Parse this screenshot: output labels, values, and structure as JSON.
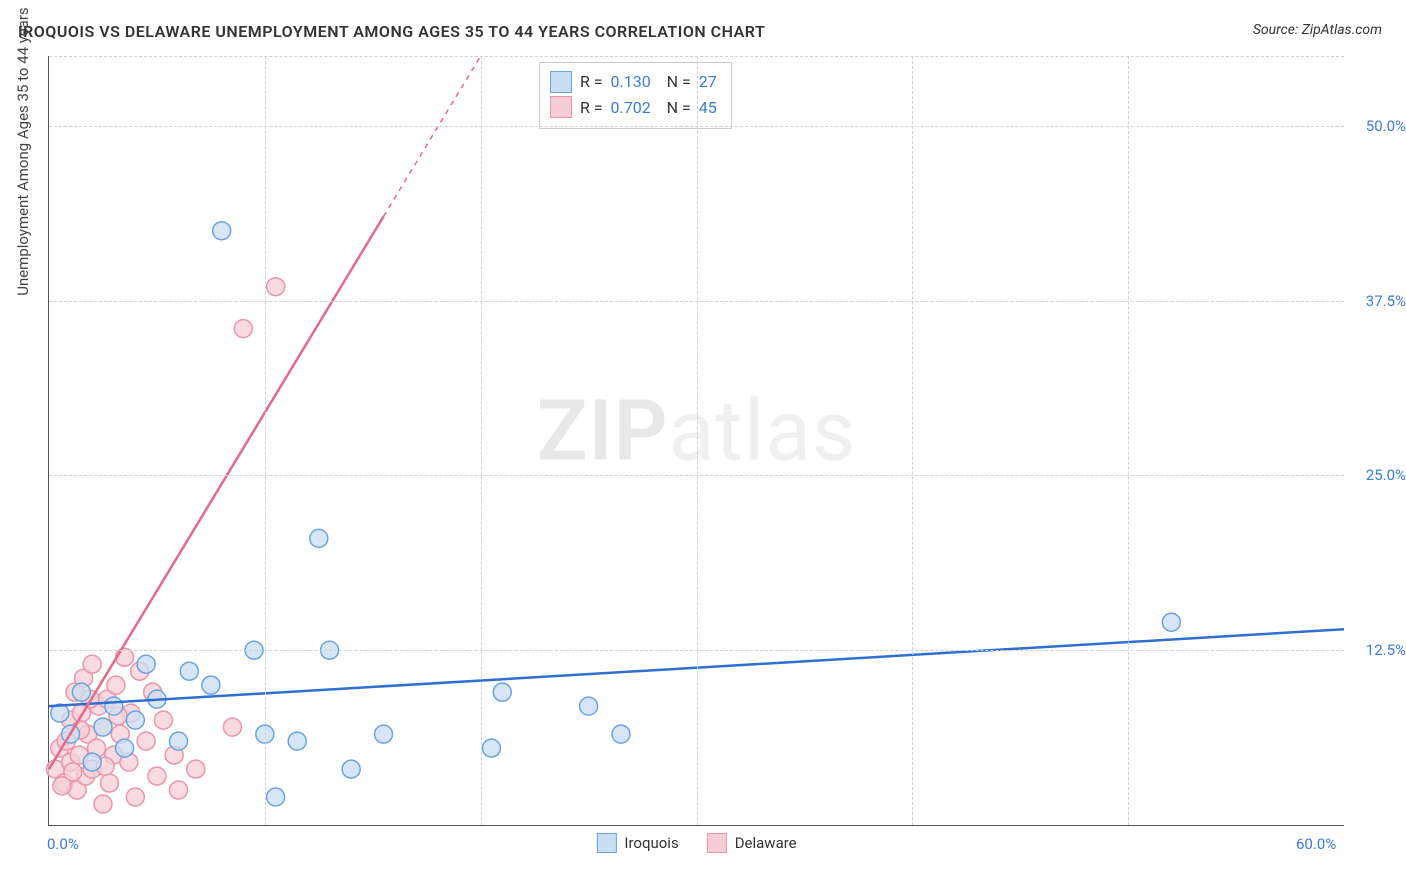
{
  "title": "IROQUOIS VS DELAWARE UNEMPLOYMENT AMONG AGES 35 TO 44 YEARS CORRELATION CHART",
  "source_label": "Source:",
  "source_value": "ZipAtlas.com",
  "ylabel": "Unemployment Among Ages 35 to 44 years",
  "watermark_zip": "ZIP",
  "watermark_atlas": "atlas",
  "chart": {
    "type": "scatter",
    "xlim": [
      0,
      60
    ],
    "ylim": [
      0,
      55
    ],
    "xticks": [
      0,
      60
    ],
    "xtick_labels": [
      "0.0%",
      "60.0%"
    ],
    "yticks": [
      12.5,
      25.0,
      37.5,
      50.0
    ],
    "ytick_labels": [
      "12.5%",
      "25.0%",
      "37.5%",
      "50.0%"
    ],
    "vgrid_at": [
      10,
      20,
      30,
      40,
      50
    ],
    "background_color": "#ffffff",
    "grid_color": "#d0d0d0",
    "axis_color": "#555555",
    "tick_label_color": "#3b7dd8",
    "marker_radius": 9,
    "marker_stroke_width": 1.5,
    "trend_line_width": 2.5,
    "series": [
      {
        "name": "Iroquois",
        "fill": "#c9ddf3",
        "stroke": "#6aa3e0",
        "fill_opacity": 0.75,
        "r_value": "0.130",
        "n_value": "27",
        "trend": {
          "x1": 0,
          "y1": 8.5,
          "x2": 60,
          "y2": 14.0,
          "color": "#2f6fd0",
          "dashed_after_x": null
        },
        "points": [
          [
            0.5,
            8.0
          ],
          [
            1.0,
            6.5
          ],
          [
            1.5,
            9.5
          ],
          [
            2.0,
            4.5
          ],
          [
            2.5,
            7.0
          ],
          [
            3.0,
            8.5
          ],
          [
            3.5,
            5.5
          ],
          [
            4.5,
            11.5
          ],
          [
            5.0,
            9.0
          ],
          [
            6.0,
            6.0
          ],
          [
            6.5,
            11.0
          ],
          [
            7.5,
            10.0
          ],
          [
            8.0,
            42.5
          ],
          [
            9.5,
            12.5
          ],
          [
            10.0,
            6.5
          ],
          [
            10.5,
            2.0
          ],
          [
            11.5,
            6.0
          ],
          [
            12.5,
            20.5
          ],
          [
            13.0,
            12.5
          ],
          [
            14.0,
            4.0
          ],
          [
            15.5,
            6.5
          ],
          [
            20.5,
            5.5
          ],
          [
            21.0,
            9.5
          ],
          [
            25.0,
            8.5
          ],
          [
            26.5,
            6.5
          ],
          [
            52.0,
            14.5
          ],
          [
            4.0,
            7.5
          ]
        ]
      },
      {
        "name": "Delaware",
        "fill": "#f6cdd6",
        "stroke": "#e796ab",
        "fill_opacity": 0.75,
        "r_value": "0.702",
        "n_value": "45",
        "trend": {
          "x1": 0,
          "y1": 4.0,
          "x2": 20,
          "y2": 55.0,
          "color": "#e36a8a",
          "dashed_after_x": 15.5
        },
        "points": [
          [
            0.3,
            4.0
          ],
          [
            0.5,
            5.5
          ],
          [
            0.7,
            3.0
          ],
          [
            0.8,
            6.0
          ],
          [
            1.0,
            4.5
          ],
          [
            1.0,
            7.5
          ],
          [
            1.2,
            9.5
          ],
          [
            1.3,
            2.5
          ],
          [
            1.4,
            5.0
          ],
          [
            1.5,
            8.0
          ],
          [
            1.6,
            10.5
          ],
          [
            1.7,
            3.5
          ],
          [
            1.8,
            6.5
          ],
          [
            2.0,
            4.0
          ],
          [
            2.0,
            11.5
          ],
          [
            2.2,
            5.5
          ],
          [
            2.3,
            8.5
          ],
          [
            2.5,
            1.5
          ],
          [
            2.5,
            7.0
          ],
          [
            2.7,
            9.0
          ],
          [
            2.8,
            3.0
          ],
          [
            3.0,
            5.0
          ],
          [
            3.1,
            10.0
          ],
          [
            3.3,
            6.5
          ],
          [
            3.5,
            12.0
          ],
          [
            3.7,
            4.5
          ],
          [
            3.8,
            8.0
          ],
          [
            4.0,
            2.0
          ],
          [
            4.2,
            11.0
          ],
          [
            4.5,
            6.0
          ],
          [
            4.8,
            9.5
          ],
          [
            5.0,
            3.5
          ],
          [
            5.3,
            7.5
          ],
          [
            5.8,
            5.0
          ],
          [
            6.0,
            2.5
          ],
          [
            6.8,
            4.0
          ],
          [
            8.5,
            7.0
          ],
          [
            9.0,
            35.5
          ],
          [
            10.5,
            38.5
          ],
          [
            1.1,
            3.8
          ],
          [
            1.9,
            9.0
          ],
          [
            2.6,
            4.2
          ],
          [
            3.2,
            7.8
          ],
          [
            0.6,
            2.8
          ],
          [
            1.45,
            6.8
          ]
        ]
      }
    ]
  },
  "legend": {
    "r_label": "R",
    "n_label": "N",
    "eq": "="
  },
  "bottom_legend": {
    "items": [
      "Iroquois",
      "Delaware"
    ]
  }
}
